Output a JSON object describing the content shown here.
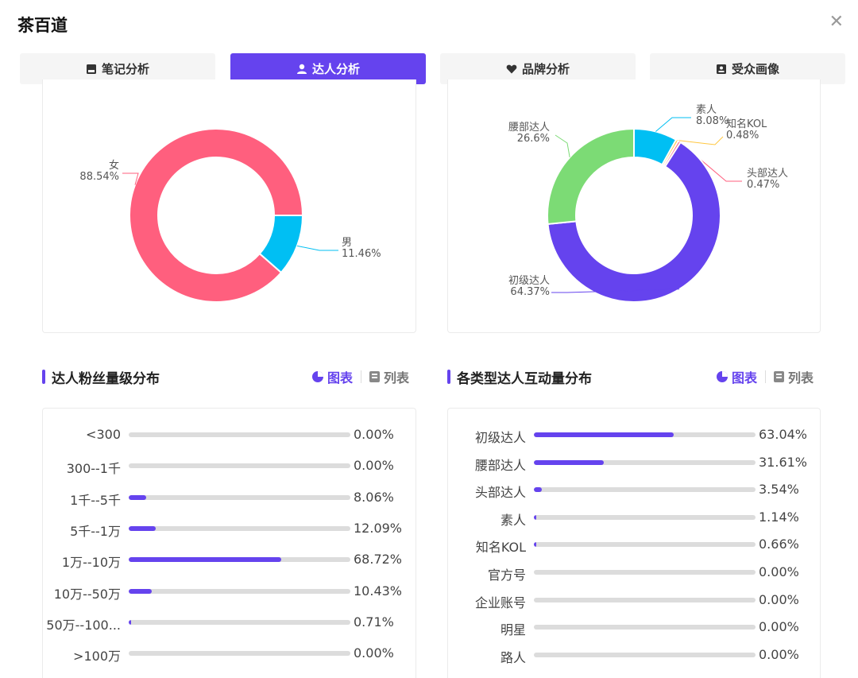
{
  "title": "茶百道",
  "colors": {
    "accent": "#6543ee",
    "female": "#ff5f7e",
    "male": "#00bff3",
    "yellow": "#ffc740",
    "green": "#7cdb75",
    "track": "#dcdcdc"
  },
  "tabs": [
    {
      "label": "笔记分析",
      "icon": "note-icon",
      "active": false
    },
    {
      "label": "达人分析",
      "icon": "user-icon",
      "active": true
    },
    {
      "label": "品牌分析",
      "icon": "heart-icon",
      "active": false
    },
    {
      "label": "受众画像",
      "icon": "profile-icon",
      "active": false
    }
  ],
  "gender_chart": {
    "type": "pie",
    "donut": true,
    "slices": [
      {
        "name": "女",
        "value": 88.54,
        "label": "88.54%",
        "color": "#ff5f7e"
      },
      {
        "name": "男",
        "value": 11.46,
        "label": "11.46%",
        "color": "#00bff3"
      }
    ]
  },
  "tier_chart": {
    "type": "pie",
    "donut": true,
    "slices": [
      {
        "name": "素人",
        "value": 8.08,
        "label": "8.08%",
        "color": "#00bff3"
      },
      {
        "name": "知名KOL",
        "value": 0.48,
        "label": "0.48%",
        "color": "#ffc740"
      },
      {
        "name": "头部达人",
        "value": 0.47,
        "label": "0.47%",
        "color": "#ff5f7e"
      },
      {
        "name": "初级达人",
        "value": 64.37,
        "label": "64.37%",
        "color": "#6543ee"
      },
      {
        "name": "腰部达人",
        "value": 26.6,
        "label": "26.6%",
        "color": "#7cdb75"
      }
    ]
  },
  "fans_section": {
    "title": "达人粉丝量级分布",
    "chart_label": "图表",
    "list_label": "列表",
    "chart_data": {
      "type": "bar",
      "orientation": "horizontal",
      "categories": [
        "<300",
        "300--1千",
        "1千--5千",
        "5千--1万",
        "1万--10万",
        "10万--50万",
        "50万--100...",
        ">100万"
      ],
      "values": [
        0.0,
        0.0,
        8.06,
        12.09,
        68.72,
        10.43,
        0.71,
        0.0
      ],
      "value_labels": [
        "0.00%",
        "0.00%",
        "8.06%",
        "12.09%",
        "68.72%",
        "10.43%",
        "0.71%",
        "0.00%"
      ]
    }
  },
  "interaction_section": {
    "title": "各类型达人互动量分布",
    "chart_label": "图表",
    "list_label": "列表",
    "chart_data": {
      "type": "bar",
      "orientation": "horizontal",
      "categories": [
        "初级达人",
        "腰部达人",
        "头部达人",
        "素人",
        "知名KOL",
        "官方号",
        "企业账号",
        "明星",
        "路人"
      ],
      "values": [
        63.04,
        31.61,
        3.54,
        1.14,
        0.66,
        0.0,
        0.0,
        0.0,
        0.0
      ],
      "value_labels": [
        "63.04%",
        "31.61%",
        "3.54%",
        "1.14%",
        "0.66%",
        "0.00%",
        "0.00%",
        "0.00%",
        "0.00%"
      ]
    }
  }
}
